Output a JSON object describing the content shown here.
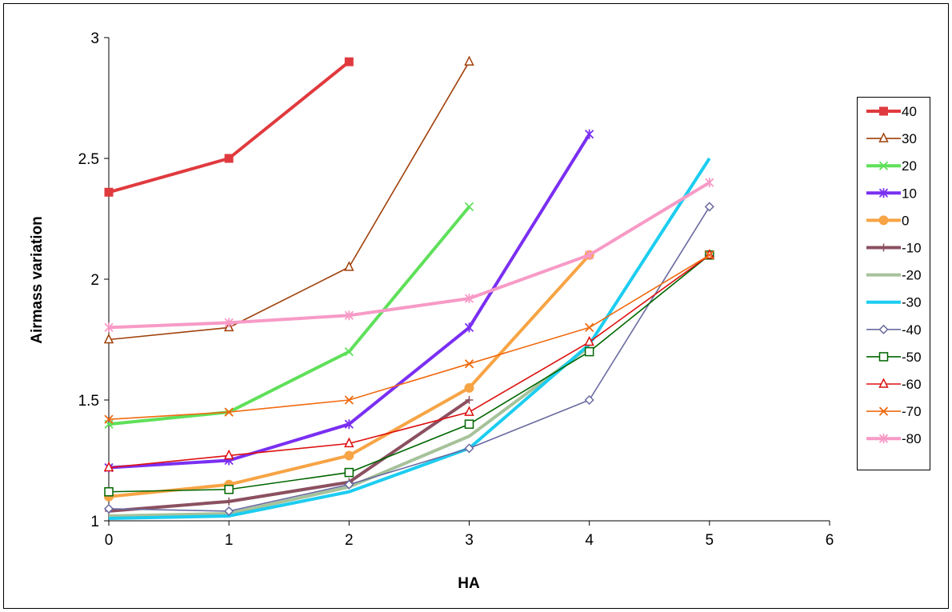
{
  "chart_data": {
    "type": "line",
    "title": "",
    "xlabel": "HA",
    "ylabel": "Airmass variation",
    "xlim": [
      0,
      6
    ],
    "ylim": [
      1,
      3
    ],
    "x_ticks": [
      0,
      1,
      2,
      3,
      4,
      5,
      6
    ],
    "y_ticks": [
      1,
      1.5,
      2,
      2.5,
      3
    ],
    "grid": false,
    "legend_position": "right",
    "series": [
      {
        "name": "40",
        "color": "#e03a3e",
        "marker": "square-filled",
        "thick": true,
        "x": [
          0,
          1,
          2
        ],
        "y": [
          2.36,
          2.5,
          2.9
        ]
      },
      {
        "name": "30",
        "color": "#a0400a",
        "marker": "triangle-open",
        "thick": false,
        "x": [
          0,
          1,
          2,
          3
        ],
        "y": [
          1.75,
          1.8,
          2.05,
          2.9
        ]
      },
      {
        "name": "20",
        "color": "#5fe05a",
        "marker": "x",
        "thick": true,
        "x": [
          0,
          1,
          2,
          3
        ],
        "y": [
          1.4,
          1.45,
          1.7,
          2.3
        ]
      },
      {
        "name": "10",
        "color": "#7a2ff2",
        "marker": "star",
        "thick": true,
        "x": [
          0,
          1,
          2,
          3,
          4
        ],
        "y": [
          1.22,
          1.25,
          1.4,
          1.8,
          2.6
        ]
      },
      {
        "name": "0",
        "color": "#f7a445",
        "marker": "circle-filled",
        "thick": true,
        "x": [
          0,
          1,
          2,
          3,
          4
        ],
        "y": [
          1.1,
          1.15,
          1.27,
          1.55,
          2.1
        ]
      },
      {
        "name": "-10",
        "color": "#8b5060",
        "marker": "plus",
        "thick": true,
        "x": [
          0,
          1,
          2,
          3
        ],
        "y": [
          1.04,
          1.08,
          1.16,
          1.5
        ]
      },
      {
        "name": "-20",
        "color": "#a6c29a",
        "marker": "none",
        "thick": true,
        "x": [
          0,
          1,
          2,
          3,
          4
        ],
        "y": [
          1.02,
          1.03,
          1.14,
          1.35,
          1.72
        ]
      },
      {
        "name": "-30",
        "color": "#1ccdf0",
        "marker": "none",
        "thick": true,
        "x": [
          0,
          1,
          2,
          3,
          4,
          5
        ],
        "y": [
          1.01,
          1.02,
          1.12,
          1.3,
          1.73,
          2.5
        ]
      },
      {
        "name": "-40",
        "color": "#6a6aa0",
        "marker": "diamond-open",
        "thick": false,
        "x": [
          0,
          1,
          2,
          3,
          4,
          5
        ],
        "y": [
          1.05,
          1.04,
          1.15,
          1.3,
          1.5,
          2.3
        ]
      },
      {
        "name": "-50",
        "color": "#006600",
        "marker": "square-open",
        "thick": false,
        "x": [
          0,
          1,
          2,
          3,
          4,
          5
        ],
        "y": [
          1.12,
          1.13,
          1.2,
          1.4,
          1.7,
          2.1
        ]
      },
      {
        "name": "-60",
        "color": "#dd1111",
        "marker": "triangle-open",
        "thick": false,
        "x": [
          0,
          1,
          2,
          3,
          4,
          5
        ],
        "y": [
          1.22,
          1.27,
          1.32,
          1.45,
          1.74,
          2.1
        ]
      },
      {
        "name": "-70",
        "color": "#f06a10",
        "marker": "x",
        "thick": false,
        "x": [
          0,
          1,
          2,
          3,
          4,
          5
        ],
        "y": [
          1.42,
          1.45,
          1.5,
          1.65,
          1.8,
          2.1
        ]
      },
      {
        "name": "-80",
        "color": "#f79ac6",
        "marker": "star",
        "thick": true,
        "x": [
          0,
          1,
          2,
          3,
          4,
          5
        ],
        "y": [
          1.8,
          1.82,
          1.85,
          1.92,
          2.1,
          2.4
        ]
      }
    ]
  }
}
